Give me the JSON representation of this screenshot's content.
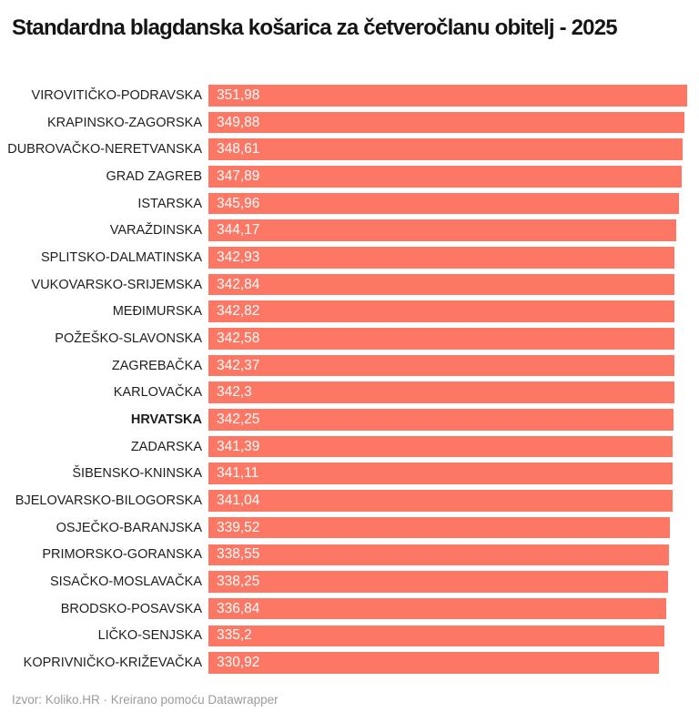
{
  "title": "Standardna blagdanska košarica za četveročlanu obitelj - 2025",
  "footer": "Izvor: Koliko.HR · Kreirano pomoću Datawrapper",
  "colors": {
    "bar": "#fd7765",
    "value_text": "#ffffff",
    "label_text": "#1e1e1e",
    "title_text": "#151515",
    "footer_text": "#9b9b9b",
    "background": "#ffffff"
  },
  "chart_data": {
    "type": "bar",
    "orientation": "horizontal",
    "title": "Standardna blagdanska košarica za četveročlanu obitelj - 2025",
    "xlabel": "",
    "ylabel": "",
    "xlim": [
      0,
      351.98
    ],
    "grid": false,
    "legend": false,
    "value_labels_position": "inside-left",
    "highlight_category": "HRVATSKA",
    "categories": [
      "VIROVITIČKO-PODRAVSKA",
      "KRAPINSKO-ZAGORSKA",
      "DUBROVAČKO-NERETVANSKA",
      "GRAD ZAGREB",
      "ISTARSKA",
      "VARAŽDINSKA",
      "SPLITSKO-DALMATINSKA",
      "VUKOVARSKO-SRIJEMSKA",
      "MEĐIMURSKA",
      "POŽEŠKO-SLAVONSKA",
      "ZAGREBAČKA",
      "KARLOVAČKA",
      "HRVATSKA",
      "ZADARSKA",
      "ŠIBENSKO-KNINSKA",
      "BJELOVARSKO-BILOGORSKA",
      "OSJEČKO-BARANJSKA",
      "PRIMORSKO-GORANSKA",
      "SISAČKO-MOSLAVAČKA",
      "BRODSKO-POSAVSKA",
      "LIČKO-SENJSKA",
      "KOPRIVNIČKO-KRIŽEVAČKA"
    ],
    "values": [
      351.98,
      349.88,
      348.61,
      347.89,
      345.96,
      344.17,
      342.93,
      342.84,
      342.82,
      342.58,
      342.37,
      342.3,
      342.25,
      341.39,
      341.11,
      341.04,
      339.52,
      338.55,
      338.25,
      336.84,
      335.2,
      330.92
    ],
    "value_labels": [
      "351,98",
      "349,88",
      "348,61",
      "347,89",
      "345,96",
      "344,17",
      "342,93",
      "342,84",
      "342,82",
      "342,58",
      "342,37",
      "342,3",
      "342,25",
      "341,39",
      "341,11",
      "341,04",
      "339,52",
      "338,55",
      "338,25",
      "336,84",
      "335,2",
      "330,92"
    ]
  }
}
